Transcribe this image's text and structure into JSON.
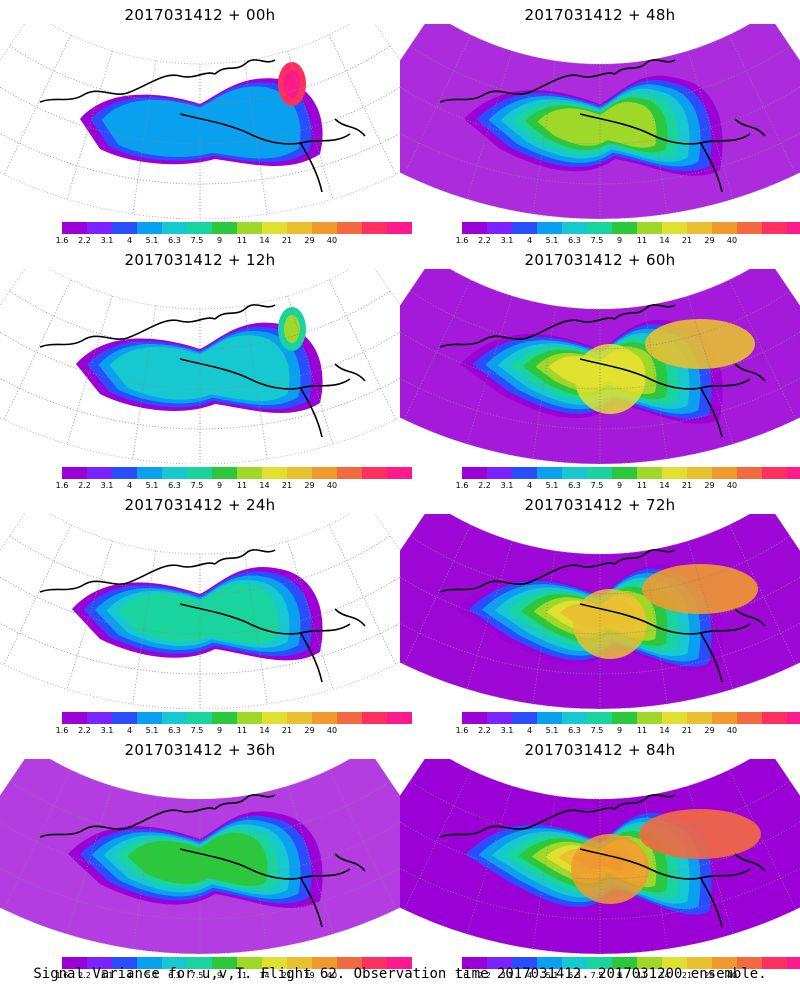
{
  "panels": [
    {
      "title": "2017031412 + 00h",
      "level": 0
    },
    {
      "title": "2017031412 + 48h",
      "level": 4
    },
    {
      "title": "2017031412 + 12h",
      "level": 1
    },
    {
      "title": "2017031412 + 60h",
      "level": 5
    },
    {
      "title": "2017031412 + 24h",
      "level": 2
    },
    {
      "title": "2017031412 + 72h",
      "level": 6
    },
    {
      "title": "2017031412 + 36h",
      "level": 3
    },
    {
      "title": "2017031412 + 84h",
      "level": 7
    }
  ],
  "colorbar": {
    "labels": [
      "1.6",
      "2.2",
      "3.1",
      "4",
      "5.1",
      "6.3",
      "7.5",
      "9",
      "11",
      "14",
      "21",
      "29",
      "40"
    ],
    "colors": [
      "#9b00d6",
      "#7a22ff",
      "#2a4dff",
      "#0aa0f0",
      "#16c8d0",
      "#19d49c",
      "#2bc83c",
      "#a0d82a",
      "#e0e030",
      "#e8c030",
      "#f09a2e",
      "#f46a40",
      "#ff3060",
      "#ff1a8c"
    ]
  },
  "footer": "Signal Variance for u,v,T. Flight 62. Observation time 2017031412. 2017031200 ensemble."
}
